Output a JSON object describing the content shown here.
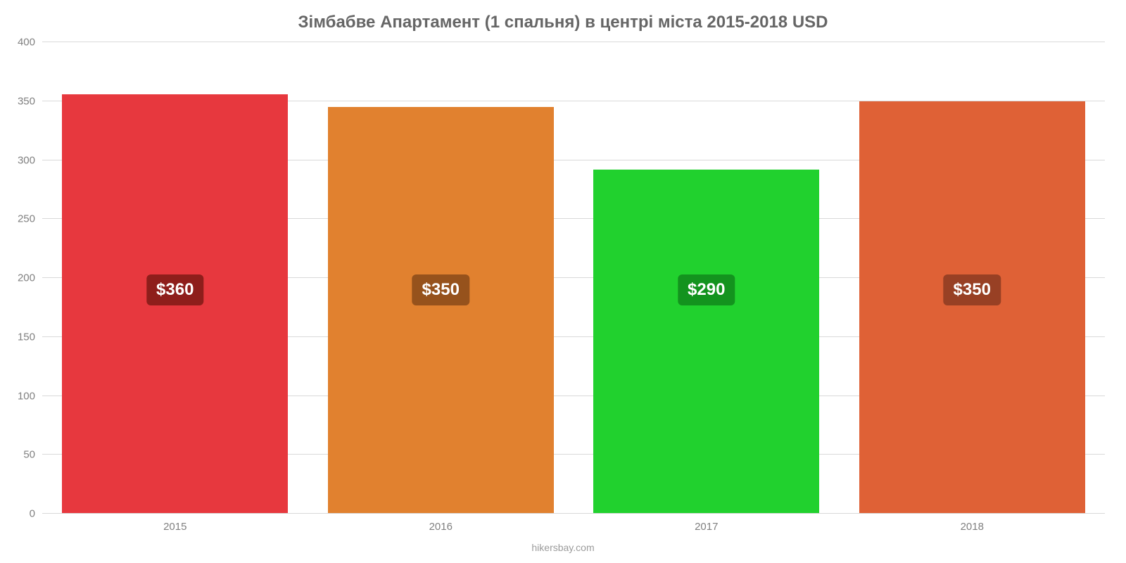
{
  "chart": {
    "type": "bar",
    "title": "Зімбабве Апартамент (1 спальня) в центрі міста 2015-2018 USD",
    "title_fontsize": 24,
    "title_color": "#666666",
    "background_color": "#ffffff",
    "grid_color": "#d9d9d9",
    "axis_label_color": "#808080",
    "ylim_min": 0,
    "ylim_max": 400,
    "ytick_step": 50,
    "yticks": [
      0,
      50,
      100,
      150,
      200,
      250,
      300,
      350,
      400
    ],
    "categories": [
      "2015",
      "2016",
      "2017",
      "2018"
    ],
    "values": [
      356,
      345,
      292,
      350
    ],
    "display_labels": [
      "$360",
      "$350",
      "$290",
      "$350"
    ],
    "bar_colors": [
      "#e7383e",
      "#e1812f",
      "#21d12e",
      "#df6136"
    ],
    "label_bg_colors": [
      "#8e1e1b",
      "#96521c",
      "#13931e",
      "#984024"
    ],
    "bar_width_pct": 85,
    "label_fontsize": 24,
    "tick_fontsize": 15,
    "data_label_y_value": 190,
    "footer": "hikersbay.com",
    "footer_color": "#9b9b9b"
  }
}
